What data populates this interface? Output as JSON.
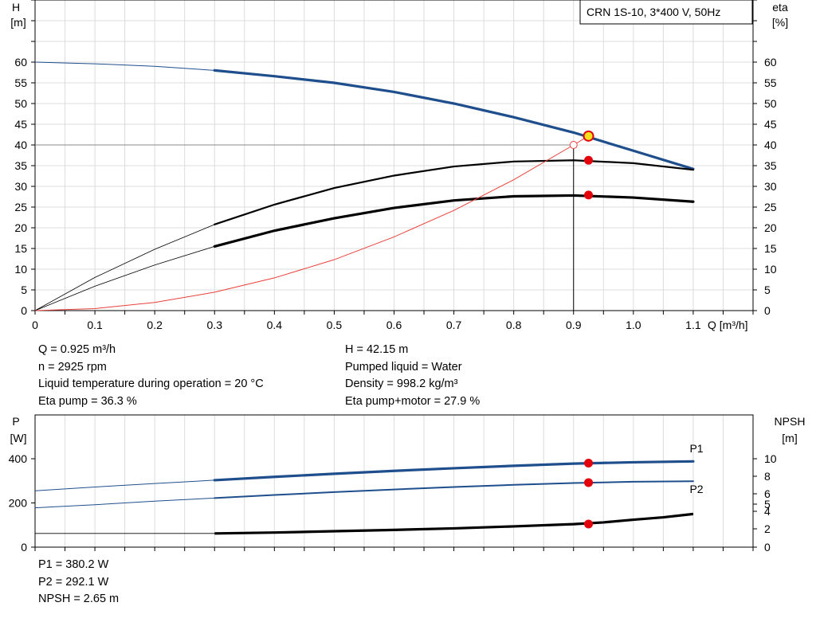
{
  "chart_data": [
    {
      "type": "line",
      "title": "CRN 1S-10, 3*400 V, 50Hz",
      "xlabel": "Q [m³/h]",
      "ylabel_left": [
        "H",
        "[m]"
      ],
      "ylabel_right": [
        "eta",
        "[%]"
      ],
      "xlim": [
        0,
        1.2
      ],
      "ylim": [
        0,
        60
      ],
      "x_ticks": [
        0,
        0.1,
        0.2,
        0.3,
        0.4,
        0.5,
        0.6,
        0.7,
        0.8,
        0.9,
        1.0,
        1.1
      ],
      "x_tick_labels": [
        "0",
        "0.1",
        "0.2",
        "0.3",
        "0.4",
        "0.5",
        "0.6",
        "0.7",
        "0.8",
        "0.9",
        "1.0",
        "1.1"
      ],
      "y_ticks": [
        0,
        5,
        10,
        15,
        20,
        25,
        30,
        35,
        40,
        45,
        50,
        55,
        60
      ],
      "y_tick_labels": [
        "0",
        "5",
        "10",
        "15",
        "20",
        "25",
        "30",
        "35",
        "40",
        "45",
        "50",
        "55",
        "60"
      ],
      "grid": true,
      "series": [
        {
          "key": "head",
          "color": "#1f4e8c",
          "x": [
            0,
            0.1,
            0.2,
            0.3,
            0.4,
            0.5,
            0.6,
            0.7,
            0.8,
            0.9,
            1.0,
            1.1
          ],
          "y": [
            60.0,
            59.6,
            59.0,
            58.0,
            56.6,
            55.0,
            52.8,
            50.0,
            46.7,
            43.0,
            38.6,
            34.2
          ]
        },
        {
          "key": "eta-pump",
          "color": "#000000",
          "x": [
            0,
            0.1,
            0.2,
            0.3,
            0.4,
            0.5,
            0.6,
            0.7,
            0.8,
            0.9,
            1.0,
            1.1
          ],
          "y": [
            0,
            8.0,
            14.8,
            20.8,
            25.6,
            29.6,
            32.6,
            34.8,
            36.0,
            36.3,
            35.6,
            34.0
          ]
        },
        {
          "key": "eta-pump-motor",
          "color": "#000000",
          "x": [
            0,
            0.1,
            0.2,
            0.3,
            0.4,
            0.5,
            0.6,
            0.7,
            0.8,
            0.9,
            1.0,
            1.1
          ],
          "y": [
            0,
            5.9,
            11.0,
            15.5,
            19.3,
            22.3,
            24.8,
            26.6,
            27.6,
            27.8,
            27.3,
            26.3
          ]
        },
        {
          "key": "system-curve",
          "color": "#e8403a",
          "x": [
            0,
            0.1,
            0.2,
            0.3,
            0.4,
            0.5,
            0.6,
            0.7,
            0.8,
            0.9,
            0.925
          ],
          "y": [
            0,
            0.49,
            1.97,
            4.44,
            7.9,
            12.3,
            17.8,
            24.2,
            31.6,
            40.0,
            42.15
          ]
        }
      ],
      "duty_point": {
        "q": 0.925,
        "h": 42.15,
        "eta_pump": 36.3,
        "eta_pump_motor": 27.9
      },
      "reference": {
        "q": 0.9,
        "h": 40
      }
    },
    {
      "type": "line",
      "ylabel_left": [
        "P",
        "[W]"
      ],
      "ylabel_right": [
        "NPSH",
        "[m]"
      ],
      "xlim": [
        0,
        1.2
      ],
      "ylim": [
        0,
        400
      ],
      "y_ticks": [
        0,
        200,
        400
      ],
      "y_tick_labels": [
        "0",
        "200",
        "400"
      ],
      "npsh_ticks": [
        "0",
        "2",
        "4",
        "5",
        "6",
        "8",
        "10"
      ],
      "series": [
        {
          "key": "p1",
          "name": "P1",
          "color": "#1f4e8c",
          "x": [
            0,
            0.1,
            0.2,
            0.3,
            0.4,
            0.5,
            0.6,
            0.7,
            0.8,
            0.9,
            1.0,
            1.1
          ],
          "y": [
            255,
            272,
            288,
            303,
            318,
            332,
            345,
            357,
            368,
            378,
            384,
            388
          ]
        },
        {
          "key": "p2",
          "name": "P2",
          "color": "#1f4e8c",
          "x": [
            0,
            0.1,
            0.2,
            0.3,
            0.4,
            0.5,
            0.6,
            0.7,
            0.8,
            0.9,
            1.0,
            1.1
          ],
          "y": [
            178,
            192,
            208,
            222,
            236,
            249,
            261,
            272,
            282,
            290,
            296,
            298
          ]
        },
        {
          "key": "npsh",
          "color": "#000000",
          "x": [
            0.3,
            0.4,
            0.5,
            0.6,
            0.7,
            0.8,
            0.9,
            0.95,
            1.0,
            1.05,
            1.1
          ],
          "y": [
            62,
            66,
            72,
            78,
            85,
            94,
            104,
            112,
            124,
            135,
            150
          ]
        }
      ],
      "duty_point": {
        "q": 0.925,
        "p1": 380.2,
        "p2": 292.1,
        "npsh": 2.65
      }
    }
  ],
  "info_top_left": [
    "Q = 0.925 m³/h",
    "n = 2925 rpm",
    "Liquid temperature during operation = 20 °C",
    "Eta pump = 36.3 %"
  ],
  "info_top_right": [
    "H = 42.15 m",
    "Pumped liquid = Water",
    "Density = 998.2 kg/m³",
    "Eta pump+motor = 27.9 %"
  ],
  "info_bottom": [
    "P1 = 380.2 W",
    "P2 = 292.1 W",
    "NPSH = 2.65 m"
  ]
}
